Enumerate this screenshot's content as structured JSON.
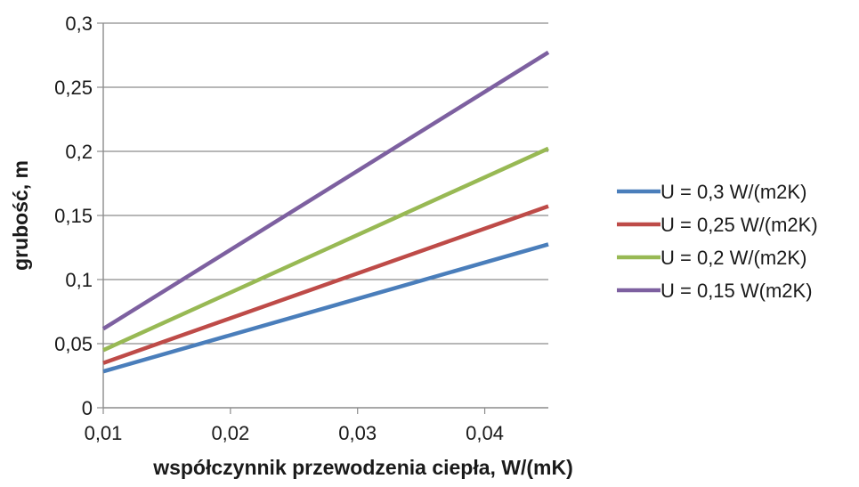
{
  "chart_data": {
    "type": "line",
    "title": "",
    "xlabel": "współczynnik przewodzenia ciepła, W/(mK)",
    "ylabel": "grubość, m",
    "xlim": [
      0.01,
      0.045
    ],
    "ylim": [
      0,
      0.3
    ],
    "x_ticks": [
      {
        "value": 0.01,
        "label": "0,01"
      },
      {
        "value": 0.02,
        "label": "0,02"
      },
      {
        "value": 0.03,
        "label": "0,03"
      },
      {
        "value": 0.04,
        "label": "0,04"
      }
    ],
    "y_ticks": [
      {
        "value": 0,
        "label": "0"
      },
      {
        "value": 0.05,
        "label": "0,05"
      },
      {
        "value": 0.1,
        "label": "0,1"
      },
      {
        "value": 0.15,
        "label": "0,15"
      },
      {
        "value": 0.2,
        "label": "0,2"
      },
      {
        "value": 0.25,
        "label": "0,25"
      },
      {
        "value": 0.3,
        "label": "0,3"
      }
    ],
    "grid": {
      "horizontal": true,
      "vertical": false
    },
    "legend_position": "right",
    "x": [
      0.01,
      0.045
    ],
    "series": [
      {
        "name": "U = 0,3 W/(m2K)",
        "color": "#4a7ebb",
        "values": [
          0.0283,
          0.1275
        ]
      },
      {
        "name": "U = 0,25 W/(m2K)",
        "color": "#be4b48",
        "values": [
          0.0349,
          0.1572
        ]
      },
      {
        "name": "U = 0,2 W/(m2K)",
        "color": "#98b954",
        "values": [
          0.0449,
          0.2022
        ]
      },
      {
        "name": "U = 0,15 W(m2K)",
        "color": "#7d60a0",
        "values": [
          0.0616,
          0.2772
        ]
      }
    ]
  }
}
